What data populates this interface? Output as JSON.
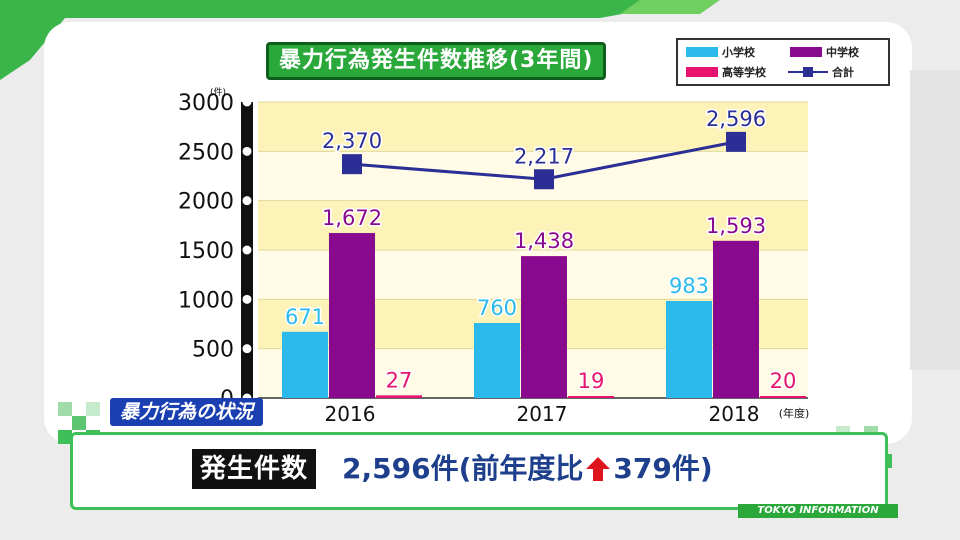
{
  "header": {
    "title": "暴力行為発生件数推移(3年間)"
  },
  "legend": {
    "items": [
      {
        "label": "小学校",
        "color": "#2cb9ec",
        "kind": "bar"
      },
      {
        "label": "中学校",
        "color": "#8a0a8f",
        "kind": "bar"
      },
      {
        "label": "高等学校",
        "color": "#e6146e",
        "kind": "bar"
      },
      {
        "label": "合計",
        "color": "#2b2f95",
        "kind": "line"
      }
    ]
  },
  "chart_data": {
    "type": "bar",
    "categories": [
      "2016",
      "2017",
      "2018"
    ],
    "x_unit_label": "(年度)",
    "y_unit_label": "(件)",
    "ylim": [
      0,
      3000
    ],
    "yticks": [
      "0",
      "500",
      "1000",
      "1500",
      "2000",
      "2500",
      "3000"
    ],
    "series": [
      {
        "name": "小学校",
        "type": "bar",
        "color": "#2cb9ec",
        "values": [
          671,
          760,
          983
        ],
        "labels": [
          "671",
          "760",
          "983"
        ]
      },
      {
        "name": "中学校",
        "type": "bar",
        "color": "#8a0a8f",
        "values": [
          1672,
          1438,
          1593
        ],
        "labels": [
          "1,672",
          "1,438",
          "1,593"
        ]
      },
      {
        "name": "高等学校",
        "type": "bar",
        "color": "#e6146e",
        "values": [
          27,
          19,
          20
        ],
        "labels": [
          "27",
          "19",
          "20"
        ]
      },
      {
        "name": "合計",
        "type": "line",
        "color": "#2b2f95",
        "values": [
          2370,
          2217,
          2596
        ],
        "labels": [
          "2,370",
          "2,217",
          "2,596"
        ]
      }
    ]
  },
  "section_label": "暴力行為の状況",
  "summary": {
    "tag": "発生件数",
    "value_prefix": "2,596件(前年度比",
    "value_suffix": "379件)",
    "arrow_icon": "up-arrow-icon",
    "arrow_color": "#e0141e"
  },
  "footer": {
    "text": "TOKYO INFORMATION"
  }
}
